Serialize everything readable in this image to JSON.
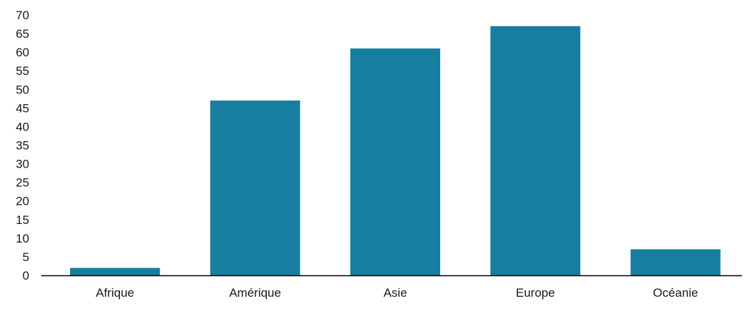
{
  "chart_data": {
    "type": "bar",
    "categories": [
      "Afrique",
      "Amérique",
      "Asie",
      "Europe",
      "Océanie"
    ],
    "values": [
      2,
      47,
      61,
      67,
      7
    ],
    "ylim": [
      0,
      70
    ],
    "yticks": [
      0,
      5,
      10,
      15,
      20,
      25,
      30,
      35,
      40,
      45,
      50,
      55,
      60,
      65,
      70
    ],
    "title": "",
    "xlabel": "",
    "ylabel": "",
    "grid": false,
    "bar_color": "#177e9f",
    "axis_color": "#000000"
  }
}
